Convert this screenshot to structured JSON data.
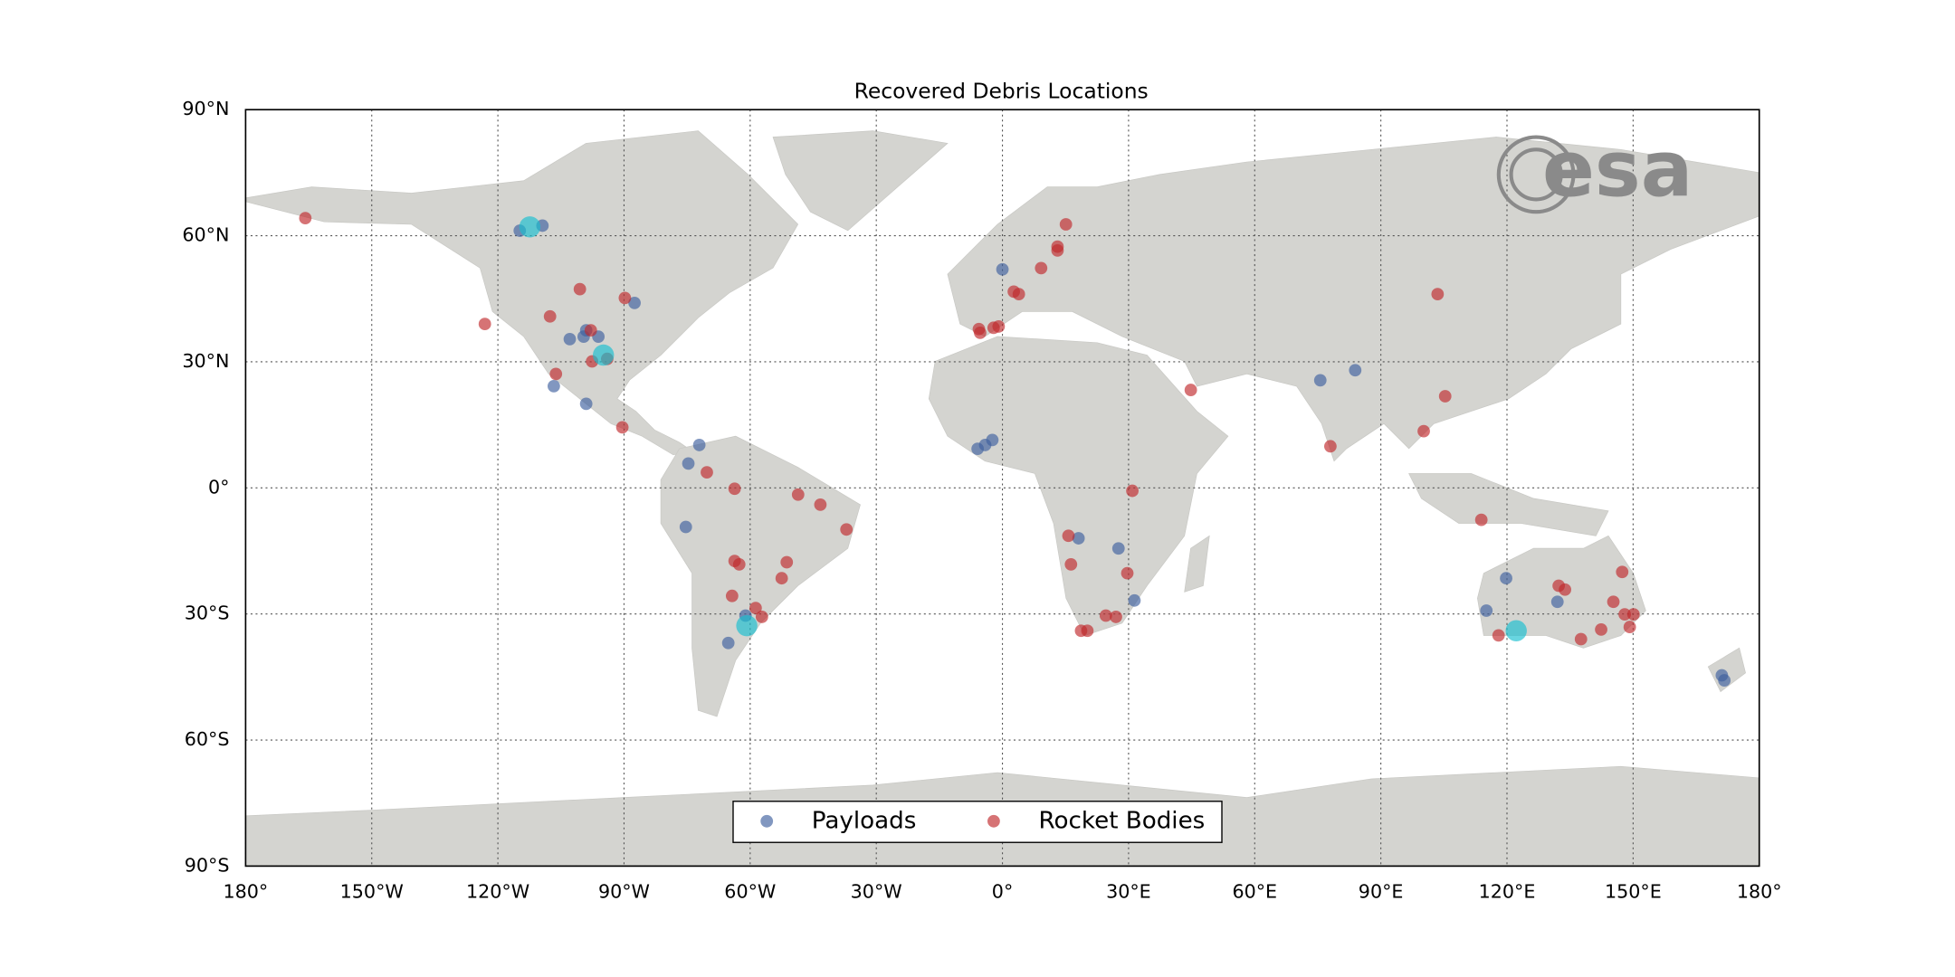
{
  "chart_data": {
    "type": "scatter",
    "title": "Recovered Debris Locations",
    "logo": "esa",
    "xlim": [
      -180,
      180
    ],
    "ylim": [
      -90,
      90
    ],
    "grid": true,
    "legend": "lower center",
    "xticks": [
      {
        "value": -180,
        "label": "180°"
      },
      {
        "value": -150,
        "label": "150°W"
      },
      {
        "value": -120,
        "label": "120°W"
      },
      {
        "value": -90,
        "label": "90°W"
      },
      {
        "value": -60,
        "label": "60°W"
      },
      {
        "value": -30,
        "label": "30°W"
      },
      {
        "value": 0,
        "label": "0°"
      },
      {
        "value": 30,
        "label": "30°E"
      },
      {
        "value": 60,
        "label": "60°E"
      },
      {
        "value": 90,
        "label": "90°E"
      },
      {
        "value": 120,
        "label": "120°E"
      },
      {
        "value": 150,
        "label": "150°E"
      },
      {
        "value": 180,
        "label": "180°"
      }
    ],
    "yticks": [
      {
        "value": -90,
        "label": "90°S"
      },
      {
        "value": -60,
        "label": "60°S"
      },
      {
        "value": -30,
        "label": "30°S"
      },
      {
        "value": 0,
        "label": "0°"
      },
      {
        "value": 30,
        "label": "30°N"
      },
      {
        "value": 60,
        "label": "60°N"
      },
      {
        "value": 90,
        "label": "90°N"
      }
    ],
    "series": [
      {
        "name": "Payloads",
        "color": "#3d5f9e",
        "x": [
          -114.8,
          -109.4,
          -87.5,
          -99.0,
          -102.9,
          -99.6,
          -96.1,
          -99.0,
          -106.7,
          -72.1,
          -74.7,
          -75.3,
          -65.2,
          -61.1,
          0.0,
          -5.9,
          -4.1,
          -2.4,
          18.1,
          27.6,
          31.4,
          75.6,
          83.9,
          119.8,
          115.1,
          132.0,
          171.1,
          171.7
        ],
        "values": [
          61.2,
          62.4,
          44.0,
          37.5,
          35.4,
          36.0,
          36.0,
          20.0,
          24.2,
          10.2,
          5.8,
          -9.3,
          -36.9,
          -30.4,
          52.0,
          9.3,
          10.2,
          11.4,
          -12.0,
          -14.4,
          -26.8,
          25.6,
          28.0,
          -21.5,
          -29.2,
          -27.1,
          -44.6,
          -45.8
        ]
      },
      {
        "name": "Rocket Bodies",
        "color": "#c0282b",
        "x": [
          -165.8,
          -123.1,
          -107.6,
          -100.5,
          -89.8,
          -106.2,
          -97.9,
          -97.6,
          -94.0,
          -90.4,
          -70.3,
          -63.7,
          -48.6,
          -43.3,
          -37.1,
          -63.7,
          -62.6,
          -64.3,
          -51.3,
          -52.5,
          -58.7,
          -57.2,
          -5.6,
          -5.3,
          -2.1,
          -0.9,
          2.7,
          3.9,
          9.2,
          13.1,
          15.1,
          13.1,
          44.8,
          30.9,
          15.7,
          16.3,
          29.7,
          24.6,
          27.0,
          18.7,
          20.2,
          78.0,
          103.5,
          105.3,
          100.2,
          113.9,
          132.3,
          133.8,
          118.0,
          137.6,
          142.4,
          147.4,
          145.3,
          148.0,
          150.1,
          149.2
        ],
        "values": [
          64.2,
          39.0,
          40.8,
          47.3,
          45.2,
          27.1,
          37.5,
          30.1,
          30.7,
          14.4,
          3.7,
          -0.2,
          -1.6,
          -4.0,
          -9.9,
          -17.4,
          -18.2,
          -25.7,
          -17.7,
          -21.5,
          -28.6,
          -30.7,
          37.8,
          36.9,
          38.1,
          38.4,
          46.7,
          46.1,
          52.3,
          57.4,
          62.7,
          56.5,
          23.3,
          -0.7,
          -11.4,
          -18.2,
          -20.3,
          -30.4,
          -30.7,
          -34.0,
          -34.0,
          9.9,
          46.1,
          21.8,
          13.5,
          -7.6,
          -23.3,
          -24.2,
          -35.1,
          -36.0,
          -33.7,
          -20.0,
          -27.1,
          -30.1,
          -30.1,
          -33.1
        ]
      },
      {
        "color": "#17becf",
        "x": [
          -112.4,
          -94.9,
          -60.8,
          122.2
        ],
        "values": [
          62.1,
          31.6,
          -32.8,
          -34.0
        ]
      }
    ]
  }
}
